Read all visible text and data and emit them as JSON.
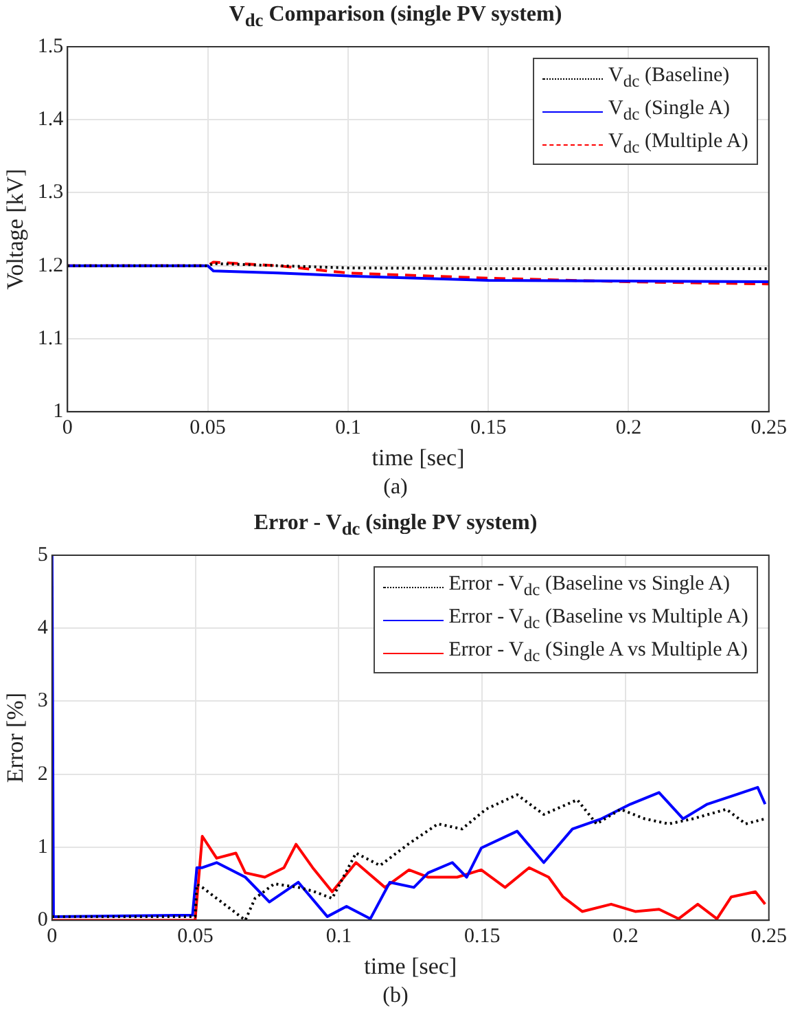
{
  "chart_data": [
    {
      "type": "line",
      "title": "V$_{dc}$ Comparison (single PV system)",
      "xlabel": "time [sec]",
      "ylabel": "Voltage [kV]",
      "annotations": [
        "(a)"
      ],
      "xlim": [
        0,
        0.25
      ],
      "ylim": [
        1,
        1.5
      ],
      "xticks": [
        0,
        0.05,
        0.1,
        0.15,
        0.2,
        0.25
      ],
      "yticks": [
        1,
        1.1,
        1.2,
        1.3,
        1.4,
        1.5
      ],
      "grid": true,
      "legend": "top right",
      "series": [
        {
          "name": "V$_{dc}$ (Baseline)",
          "color": "#000000",
          "line_style": "dotted",
          "x": [
            0,
            0.05,
            0.052,
            0.075,
            0.1,
            0.15,
            0.2,
            0.25
          ],
          "values": [
            1.2,
            1.2,
            1.203,
            1.2,
            1.197,
            1.196,
            1.196,
            1.196
          ]
        },
        {
          "name": "V$_{dc}$ (Single A)",
          "color": "#0000ff",
          "line_style": "solid",
          "x": [
            0,
            0.05,
            0.052,
            0.075,
            0.1,
            0.15,
            0.2,
            0.25
          ],
          "values": [
            1.2,
            1.2,
            1.193,
            1.19,
            1.186,
            1.18,
            1.179,
            1.178
          ]
        },
        {
          "name": "V$_{dc}$ (Multiple A)",
          "color": "#ff0000",
          "line_style": "dashed",
          "x": [
            0,
            0.05,
            0.052,
            0.075,
            0.1,
            0.15,
            0.2,
            0.25
          ],
          "values": [
            1.2,
            1.2,
            1.205,
            1.2,
            1.19,
            1.183,
            1.178,
            1.175
          ]
        }
      ]
    },
    {
      "type": "line",
      "title": "Error - V$_{dc}$ (single PV system)",
      "xlabel": "time [sec]",
      "ylabel": "Error [%]",
      "annotations": [
        "(b)"
      ],
      "xlim": [
        0,
        0.25
      ],
      "ylim": [
        0,
        5
      ],
      "xticks": [
        0,
        0.05,
        0.1,
        0.15,
        0.2,
        0.25
      ],
      "yticks": [
        0,
        1,
        2,
        3,
        4,
        5
      ],
      "grid": true,
      "legend": "top right",
      "series": [
        {
          "name": "Error - V$_{dc}$ (Baseline vs Single A)",
          "color": "#000000",
          "line_style": "dotted",
          "x": [
            0,
            0.0499,
            0.0505,
            0.0524,
            0.0574,
            0.0641,
            0.0674,
            0.0708,
            0.0775,
            0.0859,
            0.0909,
            0.0977,
            0.106,
            0.1144,
            0.1245,
            0.1346,
            0.143,
            0.1513,
            0.1622,
            0.1715,
            0.1832,
            0.1899,
            0.1983,
            0.2067,
            0.2151,
            0.2235,
            0.2352,
            0.2419,
            0.2487
          ],
          "values": [
            0.05,
            0.05,
            0.49,
            0.45,
            0.3,
            0.1,
            0,
            0.3,
            0.5,
            0.45,
            0.4,
            0.3,
            0.92,
            0.75,
            1.05,
            1.32,
            1.25,
            1.52,
            1.72,
            1.45,
            1.65,
            1.32,
            1.52,
            1.39,
            1.32,
            1.39,
            1.52,
            1.32,
            1.39
          ]
        },
        {
          "name": "Error - V$_{dc}$ (Baseline vs Multiple A)",
          "color": "#0000ff",
          "line_style": "solid",
          "x": [
            0,
            0.0005,
            0.049,
            0.0505,
            0.0524,
            0.0574,
            0.0674,
            0.0758,
            0.0859,
            0.096,
            0.1027,
            0.111,
            0.1178,
            0.1262,
            0.1312,
            0.1396,
            0.1446,
            0.1497,
            0.1622,
            0.1715,
            0.1815,
            0.1916,
            0.2017,
            0.2117,
            0.2201,
            0.2285,
            0.2386,
            0.2461,
            0.2487
          ],
          "values": [
            5,
            0.05,
            0.07,
            0.72,
            0.72,
            0.79,
            0.59,
            0.25,
            0.52,
            0.05,
            0.19,
            0.02,
            0.52,
            0.45,
            0.65,
            0.79,
            0.59,
            0.99,
            1.22,
            0.79,
            1.25,
            1.39,
            1.59,
            1.75,
            1.39,
            1.59,
            1.72,
            1.82,
            1.59
          ]
        },
        {
          "name": "Error - V$_{dc}$ (Single A vs Multiple A)",
          "color": "#ff0000",
          "line_style": "solid",
          "x": [
            0,
            0.0499,
            0.0524,
            0.0574,
            0.0641,
            0.0674,
            0.0742,
            0.0809,
            0.0851,
            0.0909,
            0.0977,
            0.106,
            0.1161,
            0.1245,
            0.1312,
            0.1413,
            0.1497,
            0.158,
            0.1664,
            0.1732,
            0.1782,
            0.1849,
            0.195,
            0.2034,
            0.2117,
            0.2185,
            0.2252,
            0.2319,
            0.2369,
            0.2453,
            0.2487
          ],
          "values": [
            0,
            0,
            1.15,
            0.85,
            0.92,
            0.65,
            0.59,
            0.72,
            1.04,
            0.72,
            0.39,
            0.79,
            0.45,
            0.69,
            0.59,
            0.59,
            0.69,
            0.45,
            0.72,
            0.59,
            0.32,
            0.12,
            0.22,
            0.12,
            0.15,
            0.02,
            0.22,
            0.02,
            0.32,
            0.39,
            0.22
          ]
        }
      ]
    }
  ]
}
